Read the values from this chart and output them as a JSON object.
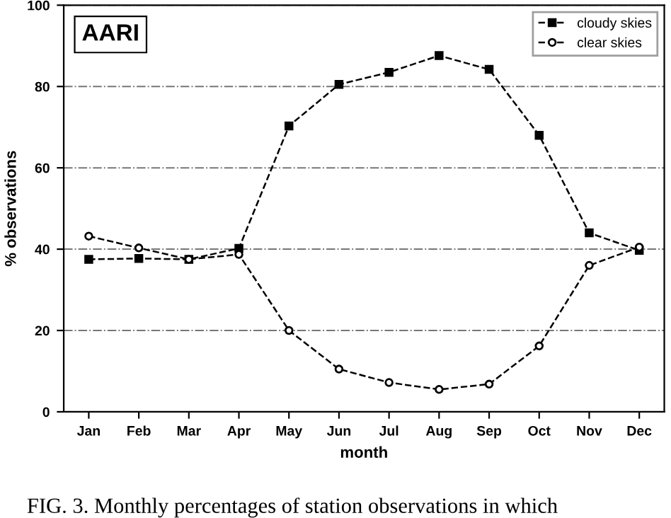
{
  "chart_data": {
    "type": "line",
    "xlabel": "month",
    "ylabel": "% observations",
    "categories": [
      "Jan",
      "Feb",
      "Mar",
      "Apr",
      "May",
      "Jun",
      "Jul",
      "Aug",
      "Sep",
      "Oct",
      "Nov",
      "Dec"
    ],
    "series": [
      {
        "name": "cloudy skies",
        "color": "#000000",
        "marker": "square",
        "values": [
          37.5,
          37.7,
          37.5,
          40.2,
          70.3,
          80.5,
          83.5,
          87.6,
          84.2,
          68,
          44,
          39.7
        ]
      },
      {
        "name": "clear skies",
        "color": "#000000",
        "marker": "circle",
        "values": [
          43.2,
          40.3,
          37.5,
          38.7,
          20,
          10.5,
          7.2,
          5.5,
          6.8,
          16.2,
          36,
          40.5
        ]
      }
    ],
    "ylim": [
      0,
      100
    ],
    "yticks": [
      0,
      20,
      40,
      60,
      80,
      100
    ],
    "grid": "y",
    "legend": "top right",
    "line_style": "dashed",
    "annotations": [
      "AARI",
      "FIG. 3. Monthly percentages of station observations in which"
    ]
  }
}
